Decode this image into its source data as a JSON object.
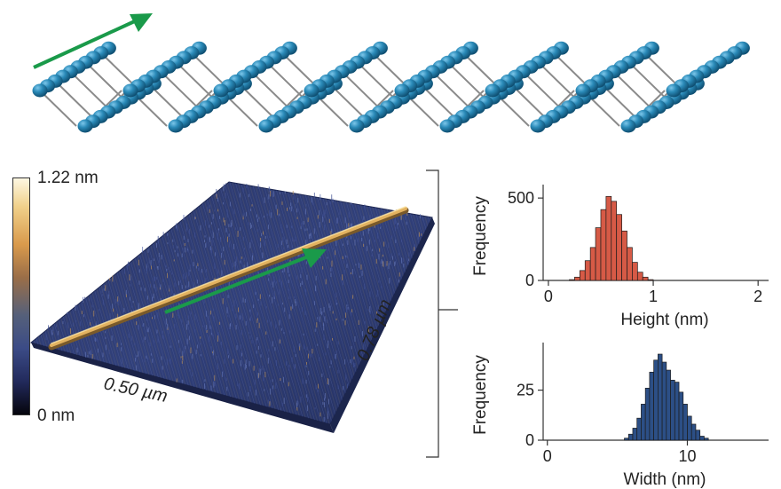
{
  "colorbar": {
    "max_label": "1.22 nm",
    "min_label": "0 nm"
  },
  "afm": {
    "x_dimension_label": "0.50 µm",
    "y_dimension_label": "0.78 µm"
  },
  "colors": {
    "arrow": "#1a9a4a",
    "atom": "#2a8ab8",
    "height_bars": "#d65a46",
    "width_bars": "#2c4f86",
    "surface": "#2b3a6e",
    "fiber": "#d7a54e"
  },
  "chart_data": [
    {
      "type": "bar",
      "title": "",
      "xlabel": "Height (nm)",
      "ylabel": "Frequency",
      "xlim": [
        -0.05,
        2.1
      ],
      "ylim": [
        0,
        560
      ],
      "xticks": [
        0,
        1,
        2
      ],
      "yticks": [
        0,
        500
      ],
      "bin_width": 0.05,
      "bin_start": [
        0.2,
        0.25,
        0.3,
        0.35,
        0.4,
        0.45,
        0.5,
        0.55,
        0.6,
        0.65,
        0.7,
        0.75,
        0.8,
        0.85,
        0.9,
        0.95
      ],
      "values": [
        5,
        20,
        60,
        120,
        200,
        320,
        430,
        510,
        480,
        400,
        300,
        200,
        110,
        50,
        20,
        5
      ]
    },
    {
      "type": "bar",
      "title": "",
      "xlabel": "Width (nm)",
      "ylabel": "Frequency",
      "xlim": [
        -0.3,
        15.8
      ],
      "ylim": [
        0,
        47
      ],
      "xticks": [
        0,
        10
      ],
      "yticks": [
        0,
        25
      ],
      "bin_width": 0.3,
      "bin_start": [
        5.5,
        5.8,
        6.1,
        6.4,
        6.7,
        7.0,
        7.3,
        7.6,
        7.9,
        8.2,
        8.5,
        8.8,
        9.1,
        9.4,
        9.7,
        10.0,
        10.3,
        10.6,
        10.9,
        11.2
      ],
      "values": [
        1,
        3,
        6,
        11,
        18,
        26,
        34,
        40,
        43,
        39,
        35,
        30,
        29,
        24,
        18,
        12,
        8,
        5,
        2,
        1
      ]
    }
  ]
}
